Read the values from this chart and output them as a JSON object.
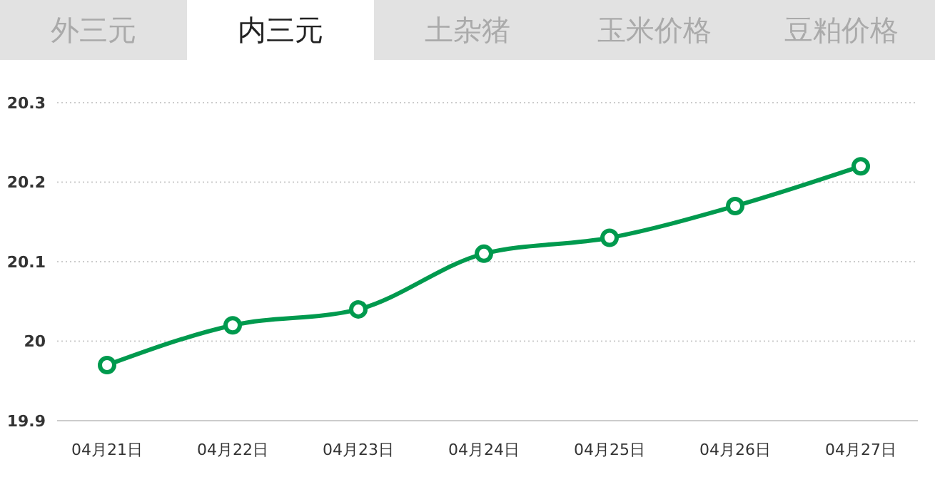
{
  "chart_data": {
    "type": "line",
    "title": "内三元",
    "annotations": [
      "外三元",
      "土杂猪",
      "玉米价格",
      "豆粕价格"
    ],
    "categories": [
      "04月21日",
      "04月22日",
      "04月23日",
      "04月24日",
      "04月25日",
      "04月26日",
      "04月27日"
    ],
    "series": [
      {
        "color": "#009a4e",
        "values": [
          19.97,
          20.02,
          20.04,
          20.11,
          20.13,
          20.17,
          20.22
        ]
      }
    ],
    "ylim": [
      19.9,
      20.3
    ],
    "yticks": [
      19.9,
      20,
      20.1,
      20.2,
      20.3
    ],
    "grid": "y",
    "marker": "circle",
    "line_style": "solid",
    "legend": false
  }
}
